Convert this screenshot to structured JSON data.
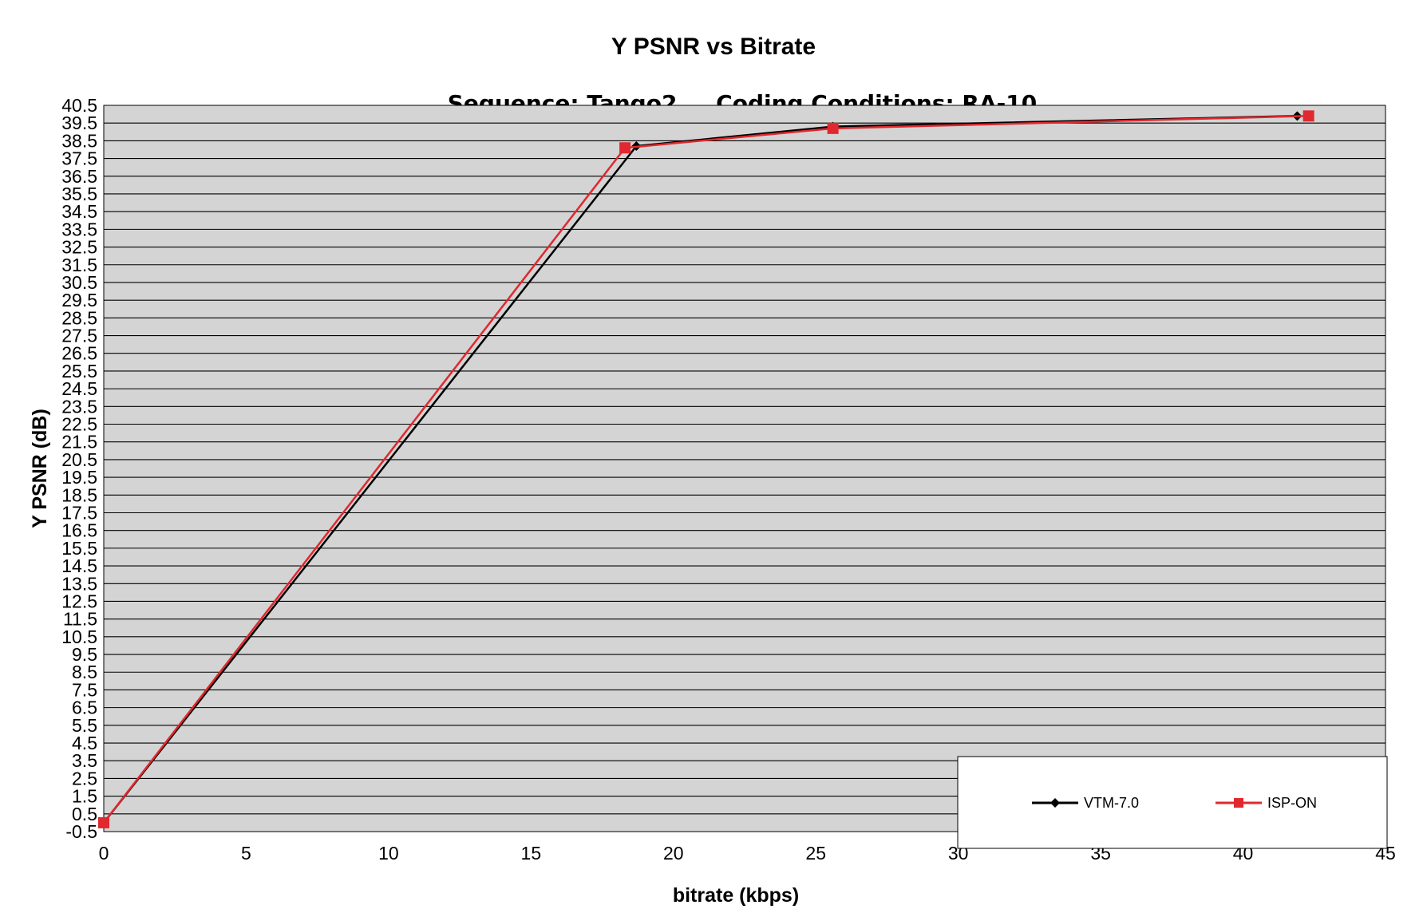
{
  "chart_data": {
    "type": "line",
    "title": "Y PSNR vs Bitrate",
    "subtitle": "Sequence: Tango2     Coding Conditions: RA-10",
    "xlabel": "bitrate (kbps)",
    "ylabel": "Y PSNR (dB)",
    "xlim": [
      0,
      45
    ],
    "ylim": [
      -0.5,
      40.5
    ],
    "x_ticks": [
      0,
      5,
      10,
      15,
      20,
      25,
      30,
      35,
      40,
      45
    ],
    "y_tick_step": 1,
    "grid": true,
    "legend_position": "bottom-right",
    "series": [
      {
        "name": "VTM-7.0",
        "color": "#000000",
        "marker": "diamond",
        "x": [
          0,
          18.7,
          25.6,
          41.9
        ],
        "y": [
          0,
          38.2,
          39.3,
          39.9
        ]
      },
      {
        "name": "ISP-ON",
        "color": "#e0282e",
        "marker": "square",
        "x": [
          0,
          18.3,
          25.6,
          42.3
        ],
        "y": [
          0,
          38.1,
          39.2,
          39.9
        ]
      }
    ]
  },
  "colors": {
    "plot_background": "#d4d4d4",
    "grid": "#000000"
  }
}
